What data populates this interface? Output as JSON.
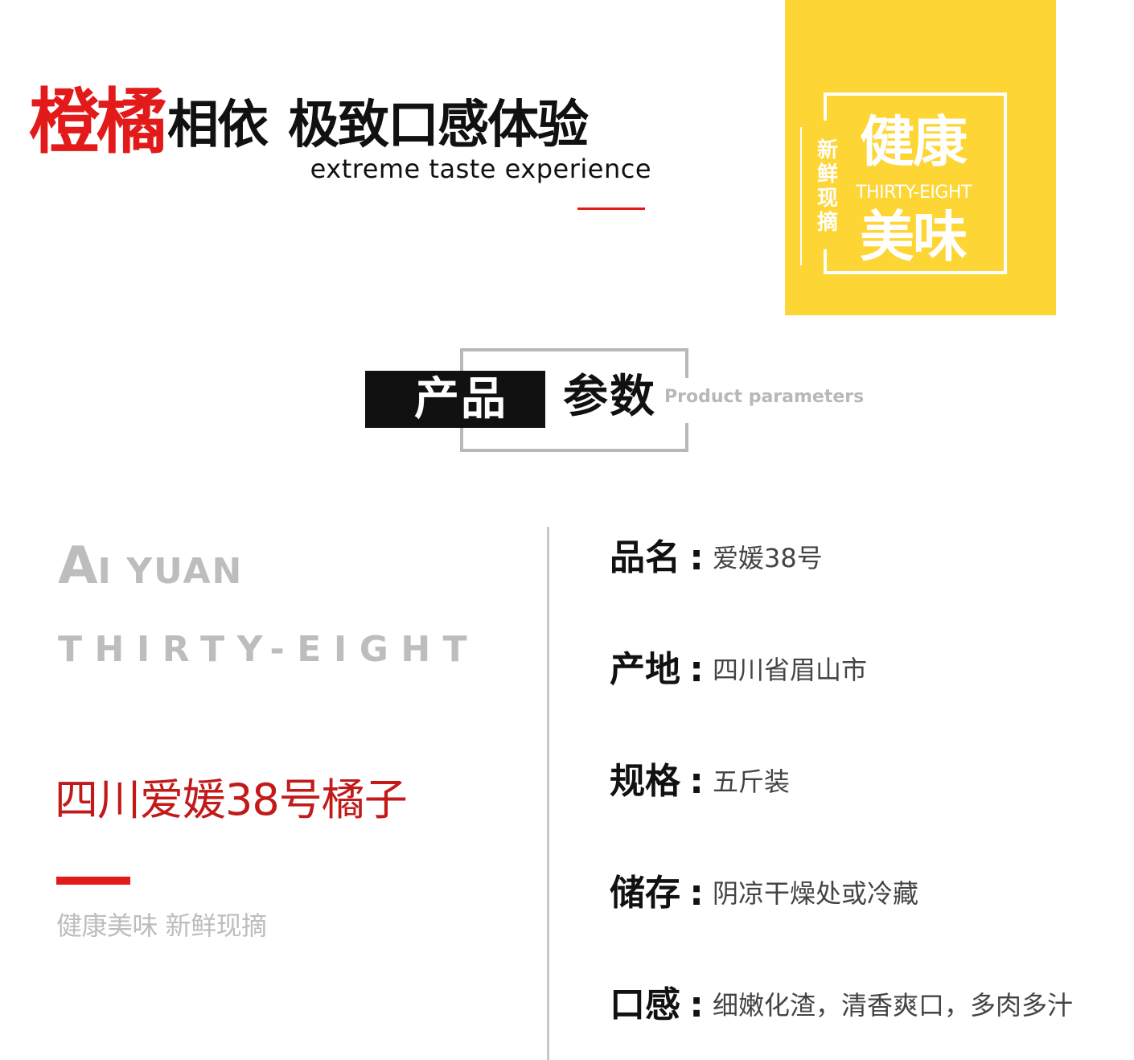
{
  "headline": {
    "red_text": "橙橘",
    "black_text_1": "相依",
    "black_text_2": "极致口感体验",
    "english": "extreme taste experience",
    "accent_color": "#e21a1a"
  },
  "badge": {
    "background_color": "#fdd535",
    "vertical_text": "新鲜现摘",
    "big_text_1": "健康",
    "english": "THIRTY-EIGHT",
    "big_text_2": "美味"
  },
  "params_header": {
    "black_label": "产品",
    "label": "参数",
    "english": "Product parameters"
  },
  "left": {
    "brand_initial": "A",
    "brand_rest": "I YUAN",
    "subtitle": "THIRTY-EIGHT",
    "product_name": "四川爱媛38号橘子",
    "tagline": "健康美味 新鲜现摘"
  },
  "specs": [
    {
      "label": "品名",
      "colon": ":",
      "value": "爱媛38号"
    },
    {
      "label": "产地",
      "colon": ":",
      "value": "四川省眉山市"
    },
    {
      "label": "规格",
      "colon": ":",
      "value": "五斤装"
    },
    {
      "label": "储存",
      "colon": ":",
      "value": "阴凉干燥处或冷藏"
    },
    {
      "label": "口感",
      "colon": ":",
      "value": "细嫩化渣，清香爽口，多肉多汁"
    }
  ]
}
